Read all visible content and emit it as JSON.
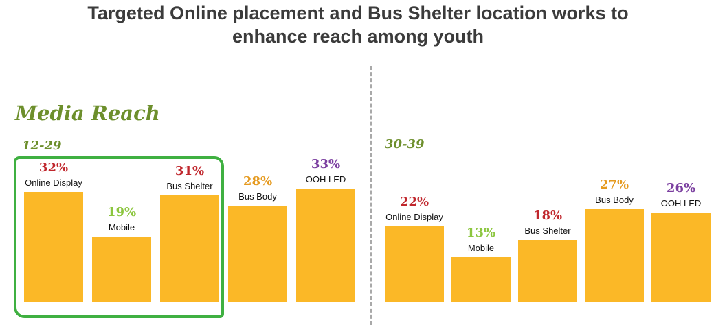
{
  "title_line1": "Targeted Online placement and Bus Shelter location works to",
  "title_line2": "enhance reach among youth",
  "section_title": "Media Reach",
  "colors": {
    "bar": "#fbb827",
    "red": "#c0272d",
    "green": "#8cc63f",
    "orange": "#e59a1f",
    "purple": "#7b3fa0",
    "highlight": "#3fb041"
  },
  "chart_data": [
    {
      "type": "bar",
      "group_label": "12-29",
      "categories": [
        "Online Display",
        "Mobile",
        "Bus Shelter",
        "Bus Body",
        "OOH LED"
      ],
      "values": [
        32,
        19,
        31,
        28,
        33
      ],
      "value_labels": [
        "32%",
        "19%",
        "31%",
        "28%",
        "33%"
      ],
      "label_colors": [
        "red",
        "green",
        "red",
        "orange",
        "purple"
      ],
      "title": "",
      "xlabel": "",
      "ylabel": "",
      "highlighted_categories": [
        "Online Display",
        "Mobile",
        "Bus Shelter"
      ]
    },
    {
      "type": "bar",
      "group_label": "30-39",
      "categories": [
        "Online Display",
        "Mobile",
        "Bus Shelter",
        "Bus Body",
        "OOH LED"
      ],
      "values": [
        22,
        13,
        18,
        27,
        26
      ],
      "value_labels": [
        "22%",
        "13%",
        "18%",
        "27%",
        "26%"
      ],
      "label_colors": [
        "red",
        "green",
        "red",
        "orange",
        "purple"
      ],
      "title": "",
      "xlabel": "",
      "ylabel": ""
    }
  ]
}
